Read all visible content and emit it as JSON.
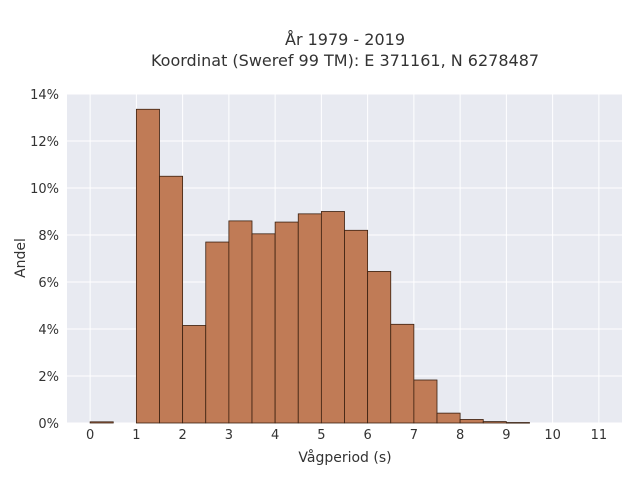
{
  "chart_data": {
    "type": "bar",
    "title": "År 1979 - 2019",
    "subtitle": "Koordinat (Sweref 99 TM): E 371161, N 6278487",
    "xlabel": "Vågperiod (s)",
    "ylabel": "Andel",
    "bin_width": 0.5,
    "bins": [
      {
        "start": 0.0,
        "value": 0.0005
      },
      {
        "start": 1.0,
        "value": 0.1335
      },
      {
        "start": 1.5,
        "value": 0.105
      },
      {
        "start": 2.0,
        "value": 0.0415
      },
      {
        "start": 2.5,
        "value": 0.077
      },
      {
        "start": 3.0,
        "value": 0.086
      },
      {
        "start": 3.5,
        "value": 0.0805
      },
      {
        "start": 4.0,
        "value": 0.0855
      },
      {
        "start": 4.5,
        "value": 0.089
      },
      {
        "start": 5.0,
        "value": 0.09
      },
      {
        "start": 5.5,
        "value": 0.082
      },
      {
        "start": 6.0,
        "value": 0.0645
      },
      {
        "start": 6.5,
        "value": 0.042
      },
      {
        "start": 7.0,
        "value": 0.0183
      },
      {
        "start": 7.5,
        "value": 0.0042
      },
      {
        "start": 8.0,
        "value": 0.0015
      },
      {
        "start": 8.5,
        "value": 0.0006
      },
      {
        "start": 9.0,
        "value": 0.0002
      }
    ],
    "xlim": [
      -0.5,
      11.5
    ],
    "ylim": [
      0,
      0.14
    ],
    "x_ticks": [
      0,
      1,
      2,
      3,
      4,
      5,
      6,
      7,
      8,
      9,
      10,
      11
    ],
    "x_tick_labels": [
      "0",
      "1",
      "2",
      "3",
      "4",
      "5",
      "6",
      "7",
      "8",
      "9",
      "10",
      "11"
    ],
    "y_ticks": [
      0,
      0.02,
      0.04,
      0.06,
      0.08,
      0.1,
      0.12,
      0.14
    ],
    "y_tick_labels": [
      "0%",
      "2%",
      "4%",
      "6%",
      "8%",
      "10%",
      "12%",
      "14%"
    ],
    "grid": true,
    "colors": {
      "bar_fill": "#c07b56",
      "bar_stroke": "#3a2010",
      "plot_bg": "#e8eaf1",
      "grid": "#ffffff",
      "text": "#333333"
    }
  }
}
